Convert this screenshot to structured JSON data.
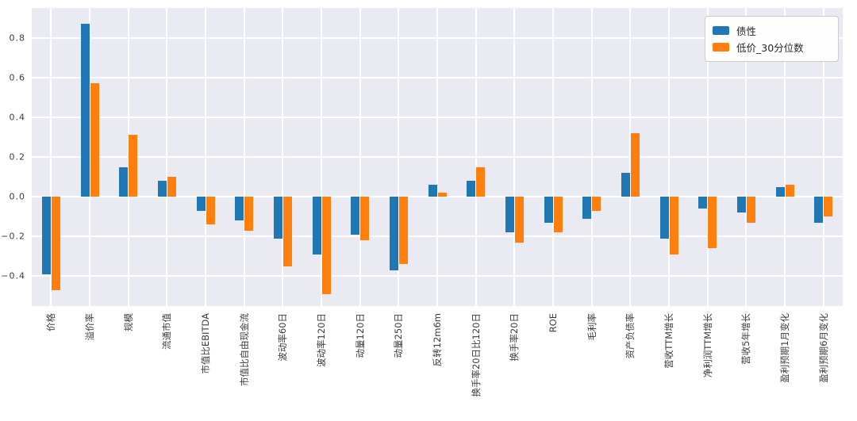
{
  "chart_data": {
    "type": "bar",
    "title": "",
    "xlabel": "",
    "ylabel": "",
    "plot_background": "#eaeaf2",
    "grid": true,
    "grid_color": "#ffffff",
    "legend_position": "upper right",
    "ylim": [
      -0.55,
      0.95
    ],
    "ytick_labels": [
      "0.8",
      "0.6",
      "0.4",
      "0.2",
      "0.0",
      "−0.2",
      "−0.4"
    ],
    "ytick_values": [
      0.8,
      0.6,
      0.4,
      0.2,
      0.0,
      -0.2,
      -0.4
    ],
    "categories": [
      "价格",
      "溢价率",
      "规模",
      "流通市值",
      "市值比EBITDA",
      "市值比自由现金流",
      "波动率60日",
      "波动率120日",
      "动量120日",
      "动量250日",
      "反转12m6m",
      "换手率20日比120日",
      "换手率20日",
      "ROE",
      "毛利率",
      "资产负债率",
      "营收TTM增长",
      "净利润TTM增长",
      "营收5年增长",
      "盈利预期1月变化",
      "盈利预期6月变化"
    ],
    "series": [
      {
        "name": "债性",
        "color": "#1f77b4",
        "values": [
          -0.39,
          0.87,
          0.15,
          0.08,
          -0.07,
          -0.12,
          -0.21,
          -0.29,
          -0.19,
          -0.37,
          0.06,
          0.08,
          -0.18,
          -0.13,
          -0.11,
          0.12,
          -0.21,
          -0.06,
          -0.08,
          0.05,
          -0.13
        ]
      },
      {
        "name": "低价_30分位数",
        "color": "#ff7f0e",
        "values": [
          -0.47,
          0.57,
          0.31,
          0.1,
          -0.14,
          -0.17,
          -0.35,
          -0.49,
          -0.22,
          -0.34,
          0.02,
          0.15,
          -0.23,
          -0.18,
          -0.07,
          0.32,
          -0.29,
          -0.26,
          -0.13,
          0.06,
          -0.1
        ]
      }
    ]
  }
}
